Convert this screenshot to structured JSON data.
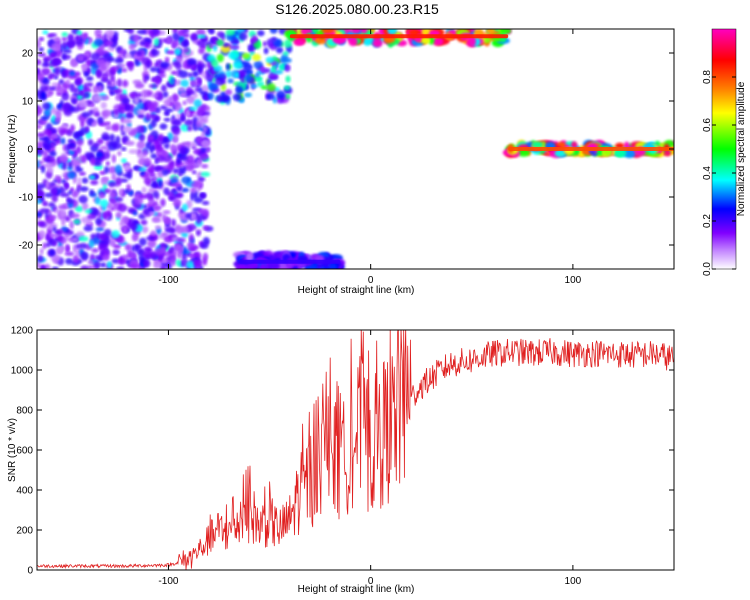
{
  "title": "S126.2025.080.00.23.R15",
  "chart_data": [
    {
      "type": "heatmap",
      "xlabel": "Height of straight line (km)",
      "ylabel": "Frequency (Hz)",
      "xlim": [
        -165,
        150
      ],
      "ylim": [
        -25,
        25
      ],
      "x_ticks": [
        -100,
        0,
        100
      ],
      "y_ticks": [
        20,
        10,
        0,
        -10,
        -20
      ],
      "colorbar": {
        "label": "Normalized spectral amplitude",
        "range": [
          0,
          1
        ],
        "ticks": [
          0.0,
          0.2,
          0.4,
          0.6,
          0.8
        ],
        "colors": [
          "#ffffff",
          "#8000ff",
          "#0000ff",
          "#00ffff",
          "#00ff00",
          "#ffff00",
          "#ff8000",
          "#ff0000",
          "#ff00c0"
        ]
      },
      "features": [
        {
          "name": "scattered noise",
          "x_range": [
            -165,
            -80
          ],
          "y_range": [
            -25,
            25
          ],
          "amplitude": 0.15
        },
        {
          "name": "clusters",
          "x_range": [
            -80,
            -40
          ],
          "y_range": [
            10,
            25
          ],
          "amplitude": 0.3
        },
        {
          "name": "upper signal band",
          "x_range": [
            -40,
            68
          ],
          "y_range": [
            22,
            25
          ],
          "amplitude": 0.85
        },
        {
          "name": "lower fragment",
          "x_range": [
            -65,
            -15
          ],
          "y_range": [
            -25,
            -22
          ],
          "amplitude": 0.2
        },
        {
          "name": "zero-frequency signal",
          "x_range": [
            68,
            150
          ],
          "y_range": [
            -1,
            1
          ],
          "amplitude": 0.8
        }
      ]
    },
    {
      "type": "line",
      "xlabel": "Height of straight line (km)",
      "ylabel": "SNR (10 * v/v)",
      "xlim": [
        -165,
        150
      ],
      "ylim": [
        0,
        1200
      ],
      "x_ticks": [
        -100,
        0,
        100
      ],
      "y_ticks": [
        0,
        200,
        400,
        600,
        800,
        1000,
        1200
      ],
      "color": "#e02020",
      "series": [
        {
          "x": [
            -165,
            -140,
            -120,
            -100,
            -90,
            -85,
            -80,
            -75,
            -70,
            -65,
            -60,
            -55,
            -50,
            -45,
            -40,
            -35,
            -30,
            -25,
            -20,
            -15,
            -10,
            -5,
            0,
            5,
            10,
            15,
            20,
            25,
            30,
            35,
            40,
            50,
            60,
            70,
            80,
            90,
            100,
            110,
            120,
            130,
            140,
            150
          ],
          "y": [
            20,
            20,
            20,
            25,
            50,
            100,
            150,
            200,
            180,
            250,
            300,
            220,
            250,
            200,
            250,
            400,
            450,
            500,
            600,
            500,
            650,
            700,
            600,
            680,
            720,
            800,
            860,
            920,
            960,
            1000,
            1030,
            1050,
            1080,
            1090,
            1085,
            1090,
            1080,
            1085,
            1080,
            1075,
            1080,
            1060
          ]
        }
      ]
    }
  ]
}
